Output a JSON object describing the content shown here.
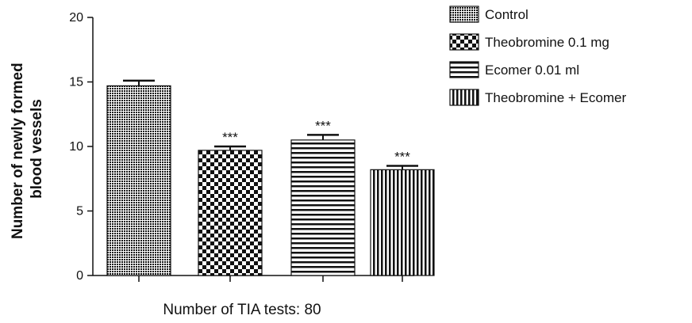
{
  "chart_data": {
    "type": "bar",
    "ylabel_line1": "Number of newly formed",
    "ylabel_line2": "blood vessels",
    "xlabel": "Number of TIA tests: 80",
    "ylim": [
      0,
      20
    ],
    "yticks": [
      "0",
      "5",
      "10",
      "15",
      "20"
    ],
    "grid": false,
    "legend_position": "top-right",
    "categories": [
      "Control",
      "Theobromine 0.1 mg",
      "Ecomer 0.01 ml",
      "Theobromine + Ecomer"
    ],
    "values": [
      14.7,
      9.7,
      10.5,
      8.2
    ],
    "errors": [
      0.4,
      0.3,
      0.4,
      0.3
    ],
    "significance": [
      "",
      "***",
      "***",
      "***"
    ],
    "patterns": [
      "dense-stipple",
      "checker",
      "horizontal-stripes",
      "vertical-stripes"
    ]
  },
  "colors": {
    "ink": "#111111",
    "background": "#ffffff"
  }
}
